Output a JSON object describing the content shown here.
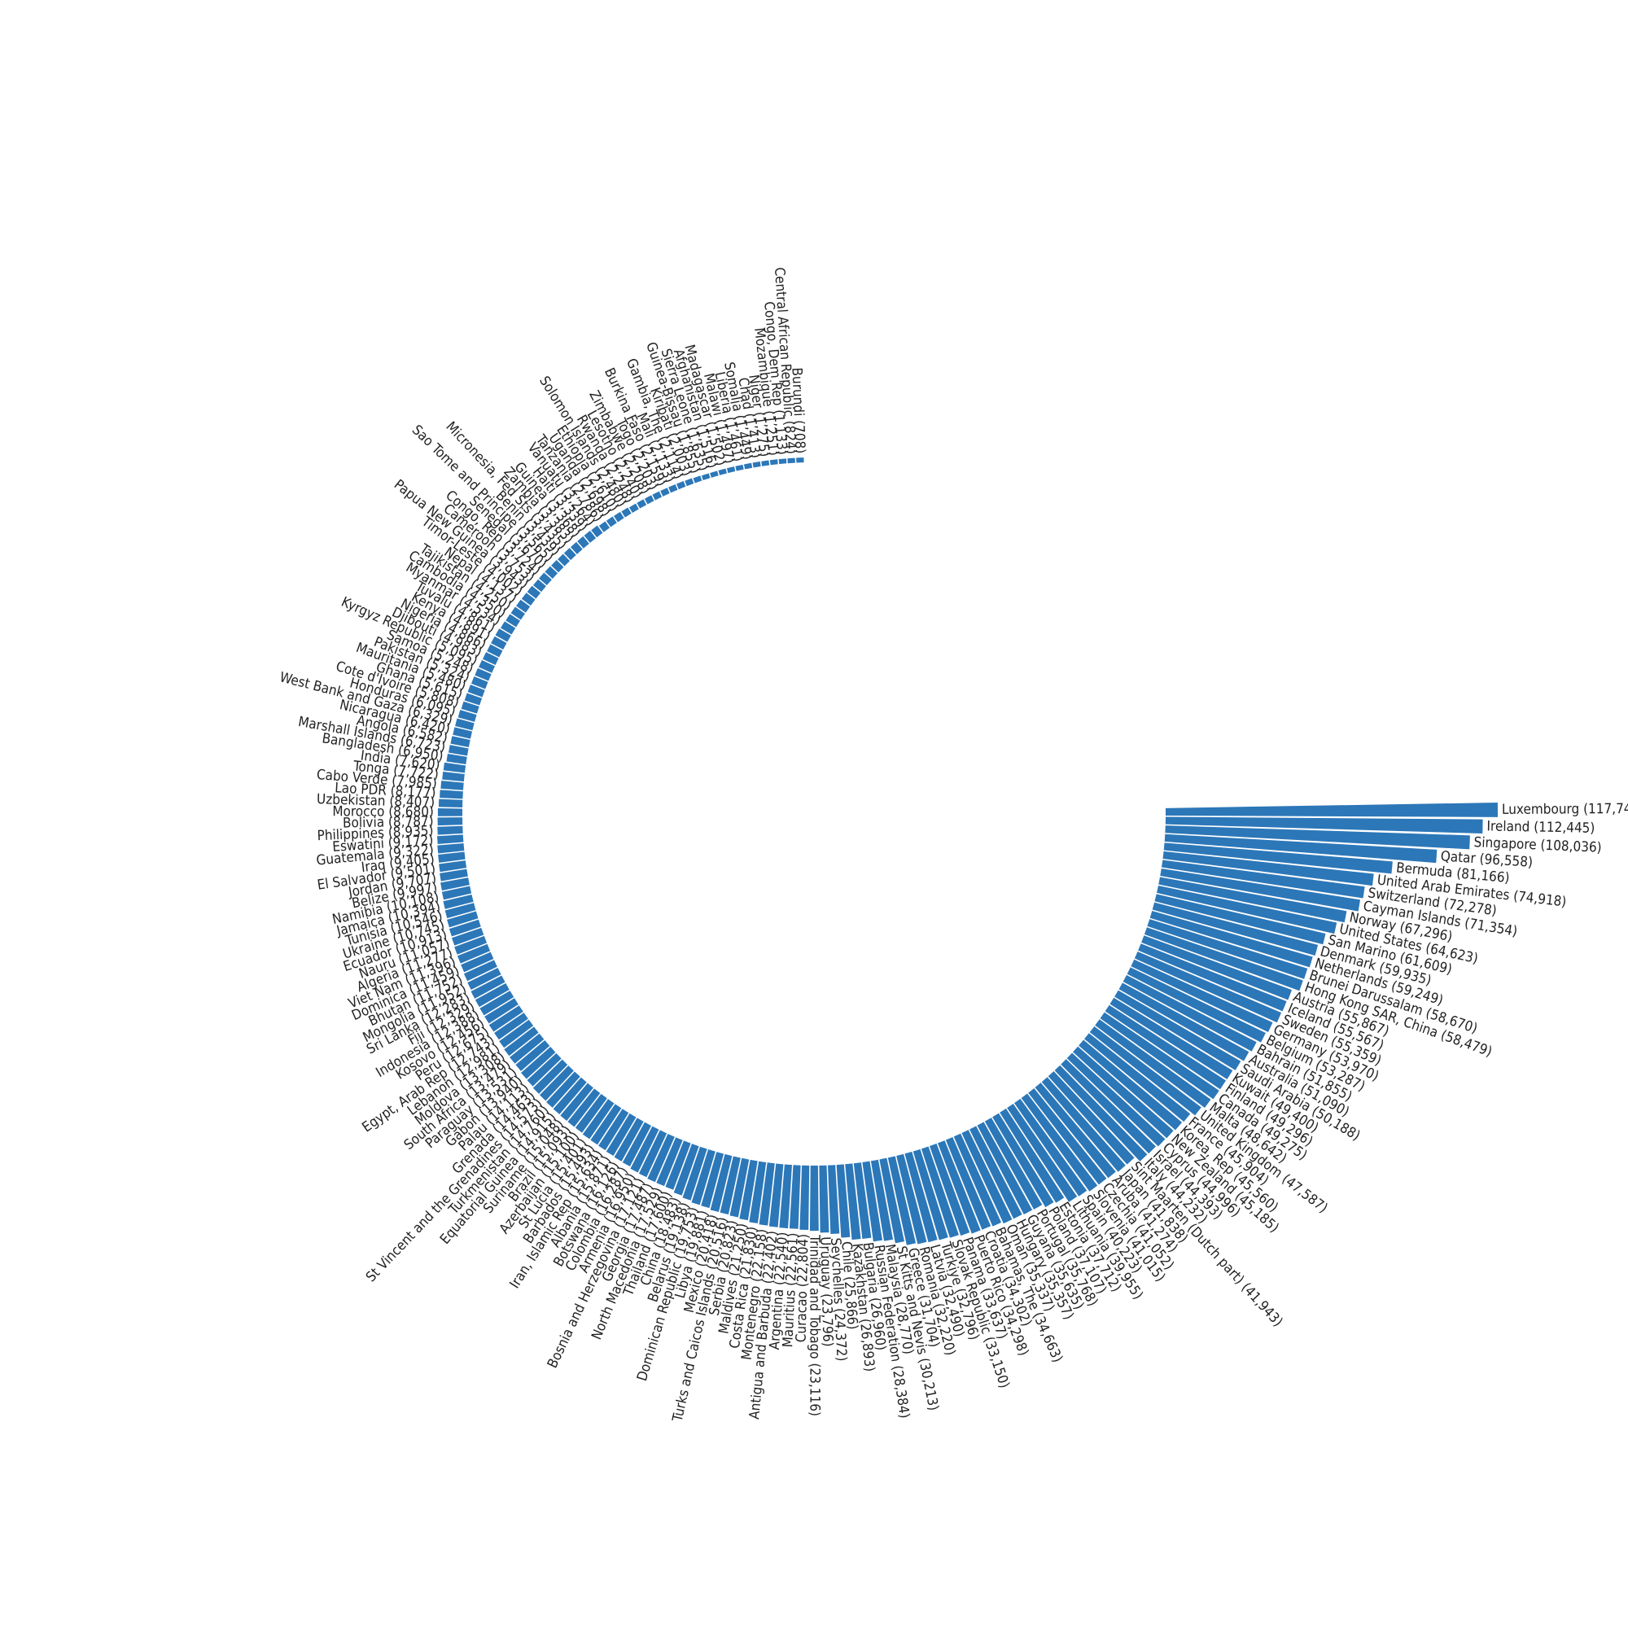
{
  "chart_data": {
    "type": "bar",
    "layout": "radial",
    "title": "",
    "xlabel": "",
    "ylabel": "",
    "bar_color": "#2c77b8",
    "categories": [
      "Luxembourg",
      "Ireland",
      "Singapore",
      "Qatar",
      "Bermuda",
      "United Arab Emirates",
      "Switzerland",
      "Cayman Islands",
      "Norway",
      "United States",
      "San Marino",
      "Denmark",
      "Netherlands",
      "Brunei Darussalam",
      "Hong Kong SAR, China",
      "Austria",
      "Iceland",
      "Sweden",
      "Germany",
      "Belgium",
      "Bahrain",
      "Australia",
      "Saudi Arabia",
      "Kuwait",
      "Finland",
      "Canada",
      "Malta",
      "United Kingdom",
      "France",
      "Korea, Rep",
      "New Zealand",
      "Cyprus",
      "Israel",
      "Italy",
      "Sint Maarten (Dutch part)",
      "Japan",
      "Aruba",
      "Czechia",
      "Slovenia",
      "Spain",
      "Lithuania",
      "Estonia",
      "Poland",
      "Portugal",
      "Guyana",
      "Hungary",
      "Oman",
      "Bahamas, The",
      "Croatia",
      "Puerto Rico",
      "Panama",
      "Slovak Republic",
      "Turkiye",
      "Latvia",
      "Romania",
      "Greece",
      "St Kitts and Nevis",
      "Malaysia",
      "Russian Federation",
      "Bulgaria",
      "Kazakhstan",
      "Chile",
      "Seychelles",
      "Uruguay",
      "Trinidad and Tobago",
      "Curacao",
      "Mauritius",
      "Argentina",
      "Antigua and Barbuda",
      "Montenegro",
      "Costa Rica",
      "Maldives",
      "Serbia",
      "Turks and Caicos Islands",
      "Mexico",
      "Libya",
      "Dominican Republic",
      "Belarus",
      "China",
      "Thailand",
      "North Macedonia",
      "Georgia",
      "Bosnia and Herzegovina",
      "Armenia",
      "Colombia",
      "Botswana",
      "Albania",
      "Iran, Islamic Rep",
      "Barbados",
      "St Lucia",
      "Azerbaijan",
      "Brazil",
      "Suriname",
      "Equatorial Guinea",
      "Turkmenistan",
      "St Vincent and the Grenadines",
      "Grenada",
      "Palau",
      "Gabon",
      "Paraguay",
      "South Africa",
      "Moldova",
      "Lebanon",
      "Egypt, Arab Rep",
      "Peru",
      "Kosovo",
      "Indonesia",
      "Fiji",
      "Sri Lanka",
      "Mongolia",
      "Bhutan",
      "Dominica",
      "Viet Nam",
      "Algeria",
      "Nauru",
      "Ecuador",
      "Ukraine",
      "Tunisia",
      "Jamaica",
      "Namibia",
      "Belize",
      "Jordan",
      "El Salvador",
      "Iraq",
      "Guatemala",
      "Eswatini",
      "Philippines",
      "Bolivia",
      "Morocco",
      "Uzbekistan",
      "Lao PDR",
      "Cabo Verde",
      "Tonga",
      "India",
      "Bangladesh",
      "Marshall Islands",
      "Angola",
      "Nicaragua",
      "West Bank and Gaza",
      "Honduras",
      "Cote d'Ivoire",
      "Ghana",
      "Mauritania",
      "Pakistan",
      "Samoa",
      "Kyrgyz Republic",
      "Djibouti",
      "Nigeria",
      "Kenya",
      "Tuvalu",
      "Myanmar",
      "Cambodia",
      "Tajikistan",
      "Nepal",
      "Timor-Leste",
      "Papua New Guinea",
      "Cameroon",
      "Congo, Rep",
      "Senegal",
      "Sao Tome and Principe",
      "Benin",
      "Micronesia, Fed Sts",
      "Zambia",
      "Guinea",
      "Haiti",
      "Vanuatu",
      "Tanzania",
      "Uganda",
      "Ethiopia",
      "Solomon Islands",
      "Rwanda",
      "Lesotho",
      "Zimbabwe",
      "Togo",
      "Burkina Faso",
      "Mali",
      "Gambia, The",
      "Kiribati",
      "Guinea-Bissau",
      "Sierra Leone",
      "Afghanistan",
      "Madagascar",
      "Malawi",
      "Liberia",
      "Somalia",
      "Chad",
      "Niger",
      "Mozambique",
      "Congo, Dem Rep",
      "Central African Republic",
      "Burundi"
    ],
    "values": [
      117747,
      112445,
      108036,
      96558,
      81166,
      74918,
      72278,
      71354,
      67296,
      64623,
      61609,
      59935,
      59249,
      58670,
      58479,
      55867,
      55567,
      55359,
      53970,
      53287,
      51855,
      51090,
      50188,
      49400,
      49296,
      49275,
      48642,
      47587,
      45904,
      45560,
      45185,
      44996,
      44393,
      44232,
      41943,
      41838,
      41274,
      41052,
      41015,
      40223,
      39955,
      37712,
      37107,
      35768,
      35635,
      35357,
      35337,
      34663,
      34302,
      34298,
      33637,
      33150,
      32796,
      32490,
      32220,
      31704,
      30213,
      28770,
      28384,
      26960,
      26893,
      25866,
      24372,
      23796,
      23116,
      22804,
      22561,
      22540,
      22402,
      22158,
      21830,
      21250,
      20823,
      20516,
      20418,
      19881,
      19753,
      19138,
      18483,
      17600,
      17529,
      17487,
      17121,
      16950,
      16287,
      16126,
      15871,
      15634,
      15493,
      15401,
      15100,
      15093,
      15048,
      14915,
      14760,
      14573,
      14463,
      14113,
      13940,
      13531,
      13479,
      13308,
      12981,
      12743,
      12675,
      12456,
      12388,
      12329,
      12283,
      11952,
      11752,
      11459,
      11396,
      11277,
      11057,
      10913,
      10745,
      10546,
      10394,
      10108,
      9997,
      9707,
      9501,
      9405,
      9322,
      9172,
      8935,
      8787,
      8680,
      8407,
      8177,
      7985,
      7722,
      7620,
      6950,
      6723,
      6582,
      6420,
      6329,
      6095,
      5808,
      5615,
      5480,
      5324,
      5248,
      5095,
      4983,
      4866,
      4891,
      4861,
      4534,
      4350,
      4250,
      4137,
      4002,
      3943,
      3753,
      3724,
      3670,
      3565,
      3439,
      3435,
      3383,
      3368,
      3339,
      3264,
      2786,
      2698,
      2610,
      2480,
      2248,
      2240,
      2208,
      2203,
      2159,
      2133,
      2114,
      2003,
      1855,
      1635,
      1516,
      1502,
      1497,
      1461,
      1449,
      1413,
      1275,
      1251,
      1133,
      824,
      708
    ],
    "labels": [
      "Luxembourg (117,747)",
      "Ireland (112,445)",
      "Singapore (108,036)",
      "Qatar (96,558)",
      "Bermuda (81,166)",
      "United Arab Emirates (74,918)",
      "Switzerland (72,278)",
      "Cayman Islands (71,354)",
      "Norway (67,296)",
      "United States (64,623)",
      "San Marino (61,609)",
      "Denmark (59,935)",
      "Netherlands (59,249)",
      "Brunei Darussalam (58,670)",
      "Hong Kong SAR, China (58,479)",
      "Austria (55,867)",
      "Iceland (55,567)",
      "Sweden (55,359)",
      "Germany (53,970)",
      "Belgium (53,287)",
      "Bahrain (51,855)",
      "Australia (51,090)",
      "Saudi Arabia (50,188)",
      "Kuwait (49,400)",
      "Finland (49,296)",
      "Canada (49,275)",
      "Malta (48,642)",
      "United Kingdom (47,587)",
      "France (45,904)",
      "Korea, Rep (45,560)",
      "New Zealand (45,185)",
      "Cyprus (44,996)",
      "Israel (44,393)",
      "Italy (44,232)",
      "Sint Maarten (Dutch part) (41,943)",
      "Japan (41,838)",
      "Aruba (41,274)",
      "Czechia (41,052)",
      "Slovenia (41,015)",
      "Spain (40,223)",
      "Lithuania (39,955)",
      "Estonia (37,712)",
      "Poland (37,107)",
      "Portugal (35,768)",
      "Guyana (35,635)",
      "Hungary (35,357)",
      "Oman (35,337)",
      "Bahamas, The (34,663)",
      "Croatia (34,302)",
      "Puerto Rico (34,298)",
      "Panama (33,637)",
      "Slovak Republic (33,150)",
      "Turkiye (32,796)",
      "Latvia (32,490)",
      "Romania (32,220)",
      "Greece (31,704)",
      "St Kitts and Nevis (30,213)",
      "Malaysia (28,770)",
      "Russian Federation (28,384)",
      "Bulgaria (26,960)",
      "Kazakhstan (26,893)",
      "Chile (25,866)",
      "Seychelles (24,372)",
      "Uruguay (23,796)",
      "Trinidad and Tobago (23,116)",
      "Curacao (22,804)",
      "Mauritius (22,561)",
      "Argentina (22,540)",
      "Antigua and Barbuda (22,402)",
      "Montenegro (22,158)",
      "Costa Rica (21,830)",
      "Maldives (21,250)",
      "Serbia (20,823)",
      "Turks and Caicos Islands (20,516)",
      "Mexico (20,418)",
      "Libya (19,881)",
      "Dominican Republic (19,753)",
      "Belarus (19,138)",
      "China (18,483)",
      "Thailand (17,600)",
      "North Macedonia (17,529)",
      "Georgia (17,487)",
      "Bosnia and Herzegovina (17,121)",
      "Armenia (16,950)",
      "Colombia (16,287)",
      "Botswana (16,126)",
      "Albania (15,871)",
      "Iran, Islamic Rep (15,634)",
      "Barbados (15,493)",
      "St Lucia (15,401)",
      "Azerbaijan (15,100)",
      "Brazil (15,093)",
      "Suriname (15,048)",
      "Equatorial Guinea (14,915)",
      "Turkmenistan (14,760)",
      "St Vincent and the Grenadines (14,573)",
      "Grenada (14,463)",
      "Palau (14,113)",
      "Gabon (13,940)",
      "Paraguay (13,531)",
      "South Africa (13,479)",
      "Moldova (13,308)",
      "Lebanon (12,981)",
      "Egypt, Arab Rep (12,743)",
      "Peru (12,675)",
      "Kosovo (12,456)",
      "Indonesia (12,388)",
      "Fiji (12,329)",
      "Sri Lanka (12,283)",
      "Mongolia (11,952)",
      "Bhutan (11,752)",
      "Dominica (11,459)",
      "Viet Nam (11,396)",
      "Algeria (11,277)",
      "Nauru (11,057)",
      "Ecuador (10,913)",
      "Ukraine (10,745)",
      "Tunisia (10,546)",
      "Jamaica (10,394)",
      "Namibia (10,108)",
      "Belize (9,997)",
      "Jordan (9,707)",
      "El Salvador (9,501)",
      "Iraq (9,405)",
      "Guatemala (9,322)",
      "Eswatini (9,172)",
      "Philippines (8,935)",
      "Bolivia (8,787)",
      "Morocco (8,680)",
      "Uzbekistan (8,407)",
      "Lao PDR (8,177)",
      "Cabo Verde (7,985)",
      "Tonga (7,722)",
      "India (7,620)",
      "Bangladesh (6,950)",
      "Marshall Islands (6,723)",
      "Angola (6,582)",
      "Nicaragua (6,420)",
      "West Bank and Gaza (6,329)",
      "Honduras (6,095)",
      "Cote d'Ivoire (5,808)",
      "Ghana (5,615)",
      "Mauritania (5,480)",
      "Pakistan (5,324)",
      "Samoa (5,248)",
      "Kyrgyz Republic (5,095)",
      "Djibouti (4,983)",
      "Nigeria (4,866)",
      "Kenya (4,891)",
      "Tuvalu (4,861)",
      "Myanmar (4,534)",
      "Cambodia (4,350)",
      "Tajikistan (4,250)",
      "Nepal (4,137)",
      "Timor-Leste (4,002)",
      "Papua New Guinea (3,943)",
      "Cameroon (3,753)",
      "Congo, Rep (3,724)",
      "Senegal (3,670)",
      "Sao Tome and Principe (3,565)",
      "Benin (3,439)",
      "Micronesia, Fed Sts (3,435)",
      "Zambia (3,383)",
      "Guinea (3,368)",
      "Haiti (3,339)",
      "Vanuatu (3,264)",
      "Tanzania (2,786)",
      "Uganda (2,698)",
      "Ethiopia (2,610)",
      "Solomon Islands (2,480)",
      "Rwanda (2,248)",
      "Lesotho (2,240)",
      "Zimbabwe (2,208)",
      "Togo (2,203)",
      "Burkina Faso (2,159)",
      "Mali (2,133)",
      "Gambia, The (2,114)",
      "Kiribati (2,003)",
      "Guinea-Bissau (1,855)",
      "Sierra Leone (1,635)",
      "Afghanistan (1,516)",
      "Madagascar (1,502)",
      "Malawi (1,497)",
      "Liberia (1,461)",
      "Somalia (1,449)",
      "Chad (1,413)",
      "Niger (1,275)",
      "Mozambique (1,251)",
      "Congo, Dem Rep (1,133)",
      "Central African Republic (824)",
      "Burundi (708)"
    ]
  }
}
